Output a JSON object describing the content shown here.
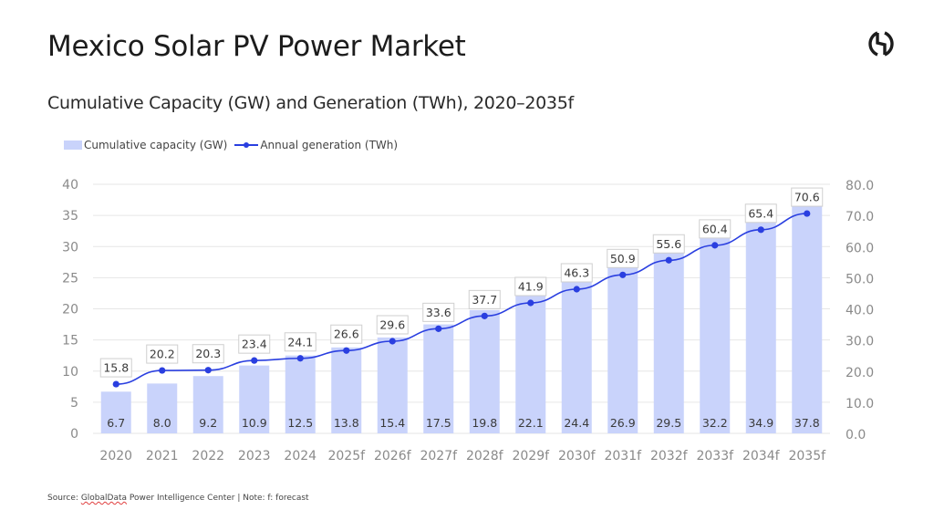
{
  "header": {
    "title": "Mexico Solar PV Power Market",
    "subtitle": "Cumulative Capacity (GW) and Generation (TWh), 2020–2035f",
    "logo_icon": "globaldata-logo-icon"
  },
  "footer": {
    "source_prefix": "Source: ",
    "source_brand": "GlobalData",
    "source_rest": " Power Intelligence Center | Note: f: forecast"
  },
  "colors": {
    "bar": "#c9d3fb",
    "line": "#2a3fe0",
    "grid": "#e6e6e6"
  },
  "chart_data": {
    "type": "bar",
    "title": "Cumulative Capacity (GW) and Generation (TWh), 2020–2035f",
    "xlabel": "",
    "ylabel": "",
    "categories": [
      "2020",
      "2021",
      "2022",
      "2023",
      "2024",
      "2025f",
      "2026f",
      "2027f",
      "2028f",
      "2029f",
      "2030f",
      "2031f",
      "2032f",
      "2033f",
      "2034f",
      "2035f"
    ],
    "series": [
      {
        "name": "Cumulative capacity (GW)",
        "type": "bar",
        "axis": "left",
        "values": [
          6.7,
          8.0,
          9.2,
          10.9,
          12.5,
          13.8,
          15.4,
          17.5,
          19.8,
          22.1,
          24.4,
          26.9,
          29.5,
          32.2,
          34.9,
          37.8
        ],
        "labels": [
          "6.7",
          "8.0",
          "9.2",
          "10.9",
          "12.5",
          "13.8",
          "15.4",
          "17.5",
          "19.8",
          "22.1",
          "24.4",
          "26.9",
          "29.5",
          "32.2",
          "34.9",
          "37.8"
        ]
      },
      {
        "name": "Annual generation (TWh)",
        "type": "line",
        "axis": "right",
        "values": [
          15.8,
          20.2,
          20.3,
          23.4,
          24.1,
          26.6,
          29.6,
          33.6,
          37.7,
          41.9,
          46.3,
          50.9,
          55.6,
          60.4,
          65.4,
          70.6
        ],
        "labels": [
          "15.8",
          "20.2",
          "20.3",
          "23.4",
          "24.1",
          "26.6",
          "29.6",
          "33.6",
          "37.7",
          "41.9",
          "46.3",
          "50.9",
          "55.6",
          "60.4",
          "65.4",
          "70.6"
        ]
      }
    ],
    "y_left": {
      "range": [
        0,
        40
      ],
      "ticks": [
        "0",
        "5",
        "10",
        "15",
        "20",
        "25",
        "30",
        "35",
        "40"
      ]
    },
    "y_right": {
      "range": [
        0,
        80
      ],
      "ticks": [
        "0.0",
        "10.0",
        "20.0",
        "30.0",
        "40.0",
        "50.0",
        "60.0",
        "70.0",
        "80.0"
      ]
    },
    "grid": true,
    "legend": {
      "placement": "top-left",
      "entries": [
        "Cumulative capacity (GW)",
        "Annual generation (TWh)"
      ]
    }
  }
}
